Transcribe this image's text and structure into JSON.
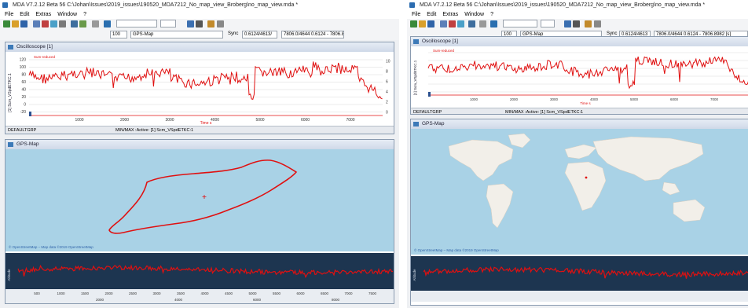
{
  "colors": {
    "trace": "#e01010",
    "map_water": "#a9d2e6",
    "map_land": "#f2efe9",
    "panel_border": "#8a9bb0"
  },
  "left": {
    "title": "MDA V7.2.12 Beta 56   C:\\Johan\\Issues\\2019_issues\\190520_MDA7212_No_map_view_Broberg\\no_map_view.mda *",
    "menu": [
      "File",
      "Edit",
      "Extras",
      "Window",
      "?"
    ],
    "zoom_field": "100",
    "map_selector": "GPS-Map",
    "sync_label": "Sync",
    "range_field1": "0.6124/4613/",
    "range_field2": "7806.0/4644   0.6124 - 7806.8982 [s]",
    "oscilloscope": {
      "title": "Oscilloscope [1]",
      "legend_name": "Sum-reduced",
      "y_axis_label": "[1] Scm_VSpdETKC.1",
      "x_axis_label": "Time  s",
      "y_ticks_left": [
        "120",
        "100",
        "80",
        "60",
        "40",
        "20",
        "0",
        "-20"
      ],
      "y_ticks_right": [
        "10",
        "8",
        "6",
        "4",
        "2",
        "0"
      ],
      "x_ticks": [
        "1000",
        "2000",
        "3000",
        "4000",
        "5000",
        "6000",
        "7000"
      ],
      "status_group": "DEFAULTGRP",
      "status_channel": "MIN/MAX :Active: [1] Scm_VSpdETKC:1"
    },
    "gps_map": {
      "title": "GPS-Map",
      "attribution": "© OpenStreetMap – Map data ©2019 OpenStreetMap",
      "strip_axis_label": "Altitude",
      "strip_x_ticks": [
        "500",
        "1000",
        "1500",
        "2000",
        "2500",
        "3000",
        "3500",
        "4000",
        "4500",
        "5000",
        "5500",
        "6000",
        "6500",
        "7000",
        "7500"
      ],
      "strip_x_ticks_low": [
        "2000",
        "4000",
        "6000",
        "8000"
      ]
    }
  },
  "right": {
    "title": "MDA V7.2.12 Beta 56   C:\\Johan\\Issues\\2019_issues\\190520_MDA7212_No_map_view_Broberg\\no_map_view.mda *",
    "menu": [
      "File",
      "Edit",
      "Extras",
      "Window",
      "?"
    ],
    "zoom_field": "100",
    "map_selector": "GPS-Map",
    "sync_label": "Sync",
    "range_field1": "0.6124/4613",
    "range_field2": "7806.0/4644   0.6124 - 7806.8982 [s]",
    "oscilloscope": {
      "title": "Oscilloscope [1]",
      "legend_name": "Sum-reduced",
      "y_axis_label": "[1] Scm_VSpdETKC.1",
      "x_axis_label": "Time  s",
      "x_ticks": [
        "1000",
        "2000",
        "3000",
        "4000",
        "5000",
        "6000",
        "7000"
      ],
      "status_group": "DEFAULTGRP",
      "status_channel": "MIN/MAX :Active: [1] Scm_VSpdETKC:1"
    },
    "gps_map": {
      "title": "GPS-Map",
      "attribution": "© OpenStreetMap – Map data ©2019 OpenStreetMap",
      "strip_axis_label": "Altitude"
    }
  }
}
